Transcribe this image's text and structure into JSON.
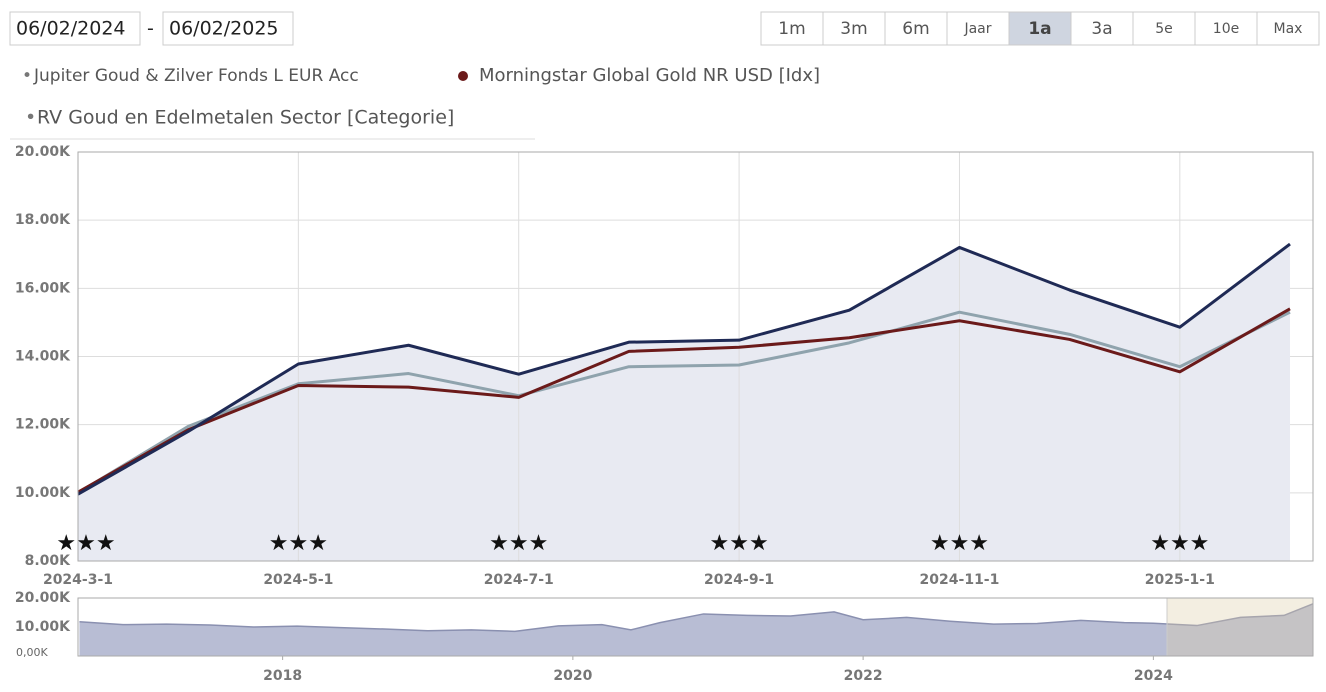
{
  "controls": {
    "date_from": "06/02/2024",
    "separator": "-",
    "date_to": "06/02/2025",
    "ranges": [
      "1m",
      "3m",
      "6m",
      "Jaar",
      "1a",
      "3a",
      "5e",
      "10e",
      "Max"
    ]
  },
  "chart_data": [
    {
      "type": "line",
      "categories": [
        "2024-3-1",
        null,
        "2024-5-1",
        null,
        "2024-7-1",
        null,
        "2024-9-1",
        null,
        "2024-11-1",
        null,
        "2025-1-1",
        null
      ],
      "series": [
        {
          "name": "Jupiter Goud & Zilver Fonds L EUR Acc",
          "color": "#1f2a55",
          "values": [
            9960,
            11800,
            13780,
            14330,
            13480,
            14420,
            14480,
            15360,
            17200,
            15950,
            14860,
            17300
          ]
        },
        {
          "name": "Morningstar Global Gold NR USD [Idx]",
          "color": "#6b1a1a",
          "values": [
            10020,
            11850,
            13150,
            13100,
            12800,
            14150,
            14270,
            14550,
            15050,
            14500,
            13550,
            15400
          ]
        },
        {
          "name": "RV Goud en Edelmetalen Sector [Categorie]",
          "color": "#8fa3ad",
          "values": [
            10000,
            11950,
            13200,
            13500,
            12850,
            13700,
            13750,
            14400,
            15300,
            14650,
            13700,
            15300
          ]
        }
      ],
      "ratings": [
        "★★★",
        "★★★",
        "★★★",
        "★★★",
        "★★★",
        "★★★"
      ],
      "ylim": [
        8000,
        20000
      ],
      "yticks": [
        {
          "value": 8000,
          "label": "8.00K"
        },
        {
          "value": 10000,
          "label": "10.00K"
        },
        {
          "value": 12000,
          "label": "12.00K"
        },
        {
          "value": 14000,
          "label": "14.00K"
        },
        {
          "value": 16000,
          "label": "16.00K"
        },
        {
          "value": 18000,
          "label": "18.00K"
        },
        {
          "value": 20000,
          "label": "20.00K"
        }
      ],
      "grid": true,
      "area_color": "#e8eaf2"
    },
    {
      "type": "area",
      "x": [
        2016.6,
        2016.9,
        2017.2,
        2017.5,
        2017.8,
        2018.1,
        2018.4,
        2018.7,
        2019.0,
        2019.3,
        2019.6,
        2019.9,
        2020.2,
        2020.4,
        2020.6,
        2020.9,
        2021.2,
        2021.5,
        2021.8,
        2022.0,
        2022.3,
        2022.6,
        2022.9,
        2023.2,
        2023.5,
        2023.8,
        2024.0,
        2024.3,
        2024.6,
        2024.9,
        2025.1
      ],
      "values": [
        11800,
        10800,
        11000,
        10700,
        10000,
        10300,
        9800,
        9300,
        8700,
        9000,
        8500,
        10400,
        10800,
        9000,
        11500,
        14500,
        14000,
        13800,
        15200,
        12500,
        13300,
        12000,
        11000,
        11200,
        12300,
        11500,
        11300,
        10500,
        13300,
        14000,
        18000
      ],
      "color": "#8a90b0",
      "fill": "#b8bdd4",
      "xlim": [
        2016.59,
        2025.1
      ],
      "xticks": [
        2018,
        2020,
        2022,
        2024
      ],
      "ylim": [
        0,
        20000
      ],
      "yticks": [
        {
          "value": 0,
          "label": "0,00K"
        },
        {
          "value": 10000,
          "label": "10.00K"
        },
        {
          "value": 20000,
          "label": "20.00K"
        }
      ]
    }
  ]
}
